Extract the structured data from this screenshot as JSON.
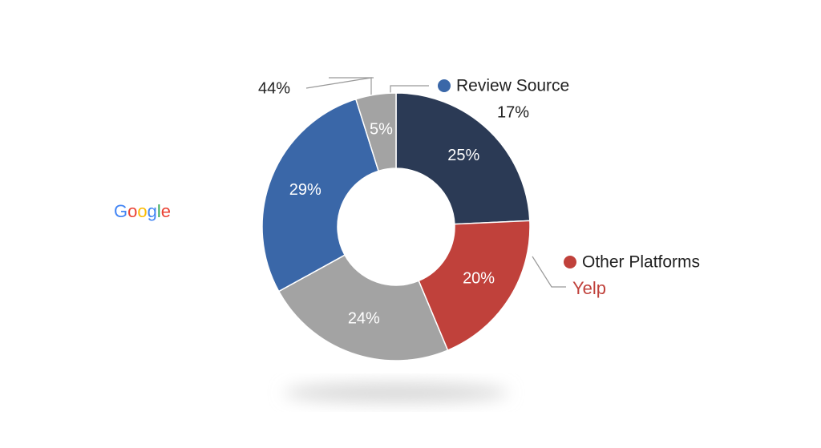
{
  "chart_data": {
    "type": "pie",
    "values": [
      25,
      20,
      24,
      29,
      5
    ],
    "value_labels": [
      "25%",
      "20%",
      "24%",
      "29%",
      "5%"
    ],
    "colors": [
      "#2b3a55",
      "#c0413b",
      "#a3a3a3",
      "#3a67a8",
      "#a3a3a3"
    ],
    "legend": [
      {
        "name": "Review Source",
        "color": "#3a67a8"
      },
      {
        "name": "Other Platforms",
        "color": "#c0413b"
      }
    ],
    "annotations": [
      "44%",
      "17%",
      "Yelp",
      "Google"
    ]
  }
}
